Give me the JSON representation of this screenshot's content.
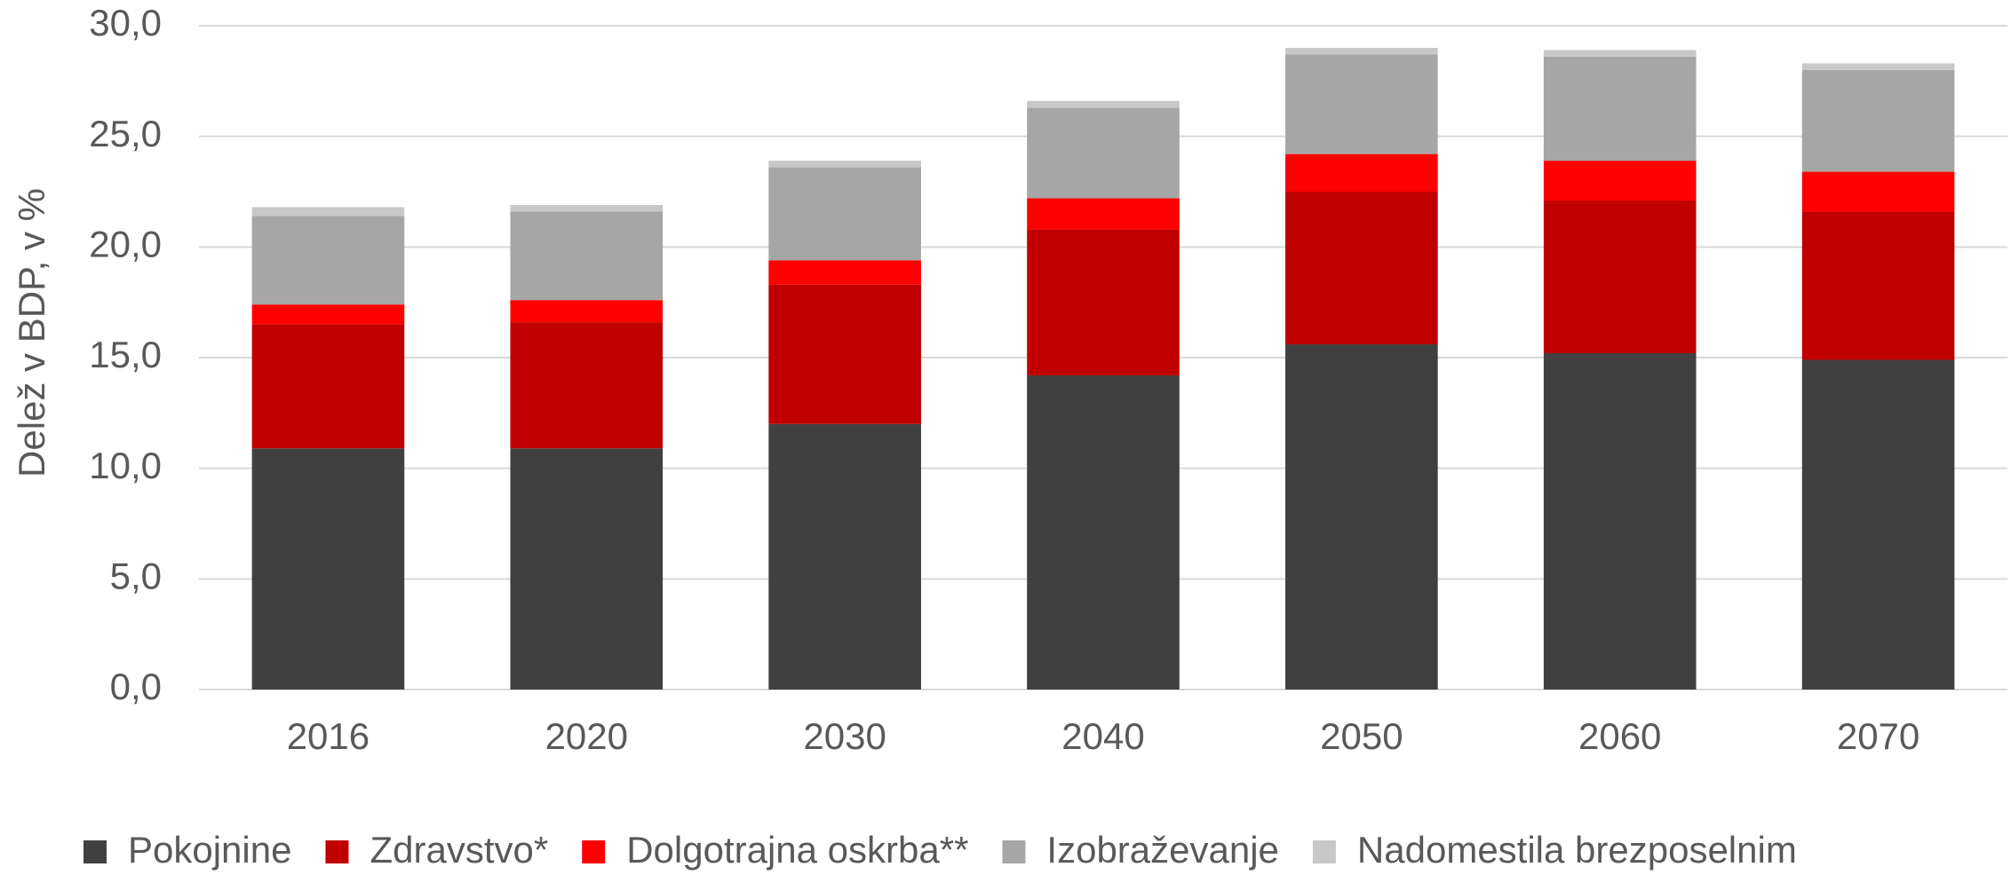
{
  "chart_data": {
    "type": "stacked_bar",
    "y_label": "Delež v BDP, v %",
    "categories": [
      "2016",
      "2020",
      "2030",
      "2040",
      "2050",
      "2060",
      "2070"
    ],
    "series": [
      {
        "name": "Pokojnine",
        "color": "#404040",
        "values": [
          10.9,
          10.9,
          12.0,
          14.2,
          15.6,
          15.2,
          14.9
        ]
      },
      {
        "name": "Zdravstvo*",
        "color": "#c00000",
        "values": [
          5.6,
          5.7,
          6.3,
          6.6,
          6.9,
          6.9,
          6.7
        ]
      },
      {
        "name": "Dolgotrajna oskrba**",
        "color": "#ff0000",
        "values": [
          0.9,
          1.0,
          1.1,
          1.4,
          1.7,
          1.8,
          1.8
        ]
      },
      {
        "name": "Izobraževanje",
        "color": "#a6a6a6",
        "values": [
          4.0,
          4.0,
          4.2,
          4.1,
          4.5,
          4.7,
          4.6
        ]
      },
      {
        "name": "Nadomestila brezposelnim",
        "color": "#c8c8c8",
        "values": [
          0.4,
          0.3,
          0.3,
          0.3,
          0.3,
          0.3,
          0.3
        ]
      }
    ],
    "ylim": [
      0,
      30
    ],
    "yticks": [
      {
        "value": 0,
        "label": "0,0"
      },
      {
        "value": 5,
        "label": "5,0"
      },
      {
        "value": 10,
        "label": "10,0"
      },
      {
        "value": 15,
        "label": "15,0"
      },
      {
        "value": 20,
        "label": "20,0"
      },
      {
        "value": 25,
        "label": "25,0"
      },
      {
        "value": 30,
        "label": "30,0"
      }
    ],
    "grid": true,
    "legend": "bottom"
  }
}
